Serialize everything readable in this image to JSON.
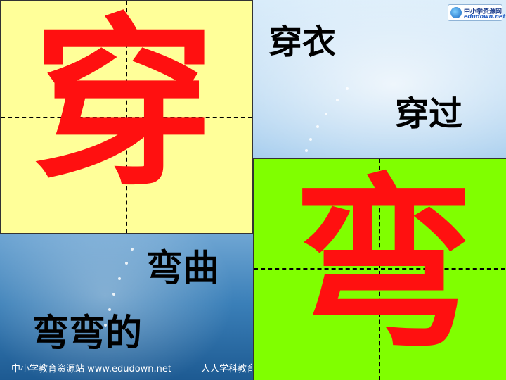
{
  "logo": {
    "name": "中小学资源网",
    "url": "edudown.net"
  },
  "cards": {
    "top_left": {
      "character": "穿",
      "background": "#ffff99",
      "char_color": "#ff1010"
    },
    "bottom_right": {
      "character": "弯",
      "background": "#80ff00",
      "char_color": "#ff1010"
    }
  },
  "words": {
    "chuan_yi": "穿衣",
    "chuan_guo": "穿过",
    "wan_qu": "弯曲",
    "wan_wan_de": "弯弯的"
  },
  "footer": {
    "left": "中小学教育资源站 www.edudown.net",
    "right": "人人学科教育"
  }
}
